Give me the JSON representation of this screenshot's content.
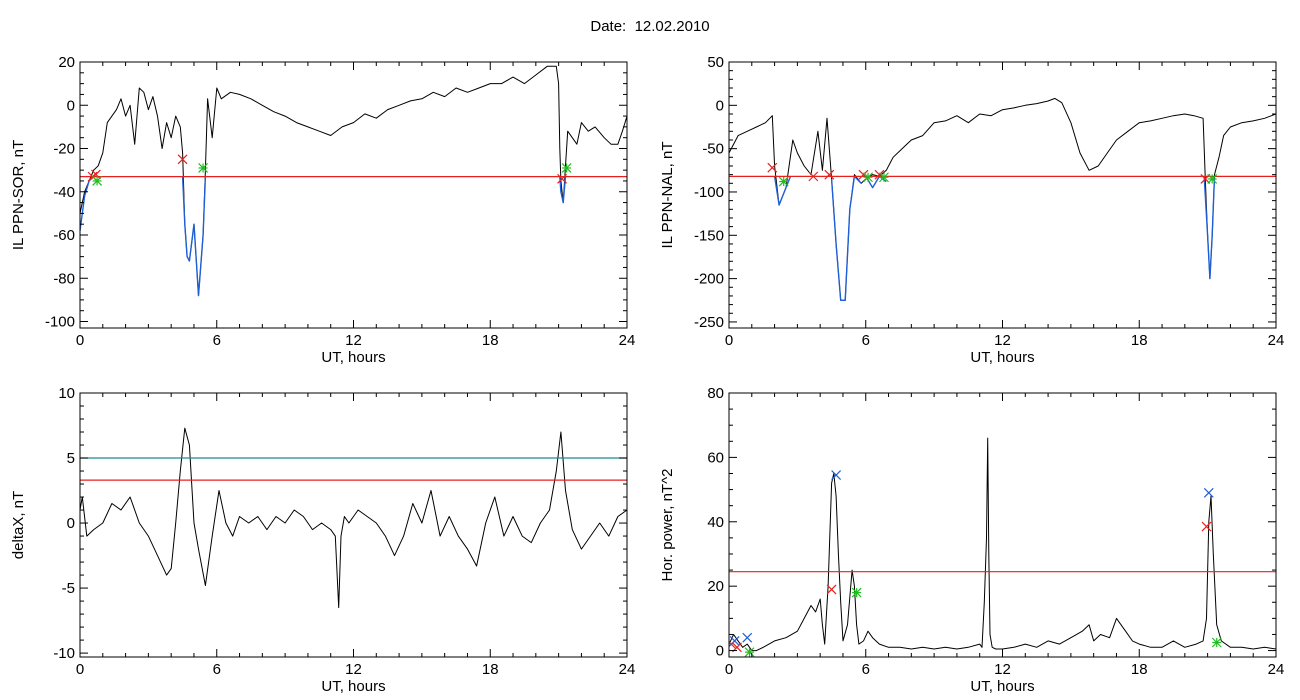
{
  "page": {
    "date_label": "Date:",
    "date_value": "12.02.2010"
  },
  "colors": {
    "trace": "#000000",
    "highlight": "#1f5fd6",
    "threshold": "#e8201c",
    "threshold2": "#1a8c8c",
    "marker_red": "#e8201c",
    "marker_green": "#22bb22",
    "marker_blue": "#1f5fd6"
  },
  "chart_data": [
    {
      "id": "sor",
      "type": "line",
      "xlabel": "UT, hours",
      "ylabel": "IL PPN-SOR, nT",
      "xlim": [
        0,
        24
      ],
      "ylim": [
        -103,
        20
      ],
      "xticks": [
        0,
        6,
        12,
        18,
        24
      ],
      "yticks": [
        20,
        0,
        -20,
        -40,
        -60,
        -80,
        -100
      ],
      "minor_x": 1,
      "minor_y": 5,
      "series": [
        {
          "color": "#000000",
          "x": [
            0,
            0.2,
            0.4,
            0.6,
            0.8,
            1.0,
            1.2,
            1.4,
            1.6,
            1.8,
            2.0,
            2.2,
            2.4,
            2.6,
            2.8,
            3.0,
            3.2,
            3.4,
            3.6,
            3.8,
            4.0,
            4.2,
            4.4,
            4.5,
            4.6,
            4.7,
            4.8,
            5.0,
            5.2,
            5.4,
            5.5,
            5.6,
            5.8,
            6.0,
            6.2,
            6.6,
            7.0,
            7.5,
            8.0,
            8.5,
            9.0,
            9.5,
            10.0,
            10.5,
            11.0,
            11.5,
            12.0,
            12.5,
            13.0,
            13.5,
            14.0,
            14.5,
            15.0,
            15.5,
            16.0,
            16.5,
            17.0,
            17.5,
            18.0,
            18.5,
            19.0,
            19.5,
            20.0,
            20.5,
            20.9,
            21.0,
            21.05,
            21.1,
            21.2,
            21.3,
            21.4,
            21.6,
            21.8,
            22.0,
            22.3,
            22.6,
            23.0,
            23.3,
            23.6,
            23.8,
            24.0
          ],
          "y": [
            -50,
            -40,
            -35,
            -30,
            -28,
            -22,
            -8,
            -5,
            -2,
            3,
            -5,
            0,
            -18,
            8,
            6,
            -2,
            4,
            -5,
            -20,
            -8,
            -15,
            -5,
            -10,
            -22,
            -55,
            -70,
            -72,
            -55,
            -88,
            -60,
            -30,
            3,
            -15,
            8,
            3,
            6,
            5,
            3,
            0,
            -3,
            -5,
            -8,
            -10,
            -12,
            -14,
            -10,
            -8,
            -4,
            -6,
            -2,
            0,
            2,
            3,
            6,
            4,
            8,
            6,
            8,
            10,
            10,
            13,
            10,
            14,
            18,
            18,
            10,
            -20,
            -35,
            -45,
            -28,
            -12,
            -15,
            -18,
            -8,
            -12,
            -10,
            -15,
            -18,
            -18,
            -12,
            -5
          ]
        },
        {
          "color": "#1f5fd6",
          "x": [
            0,
            0.2,
            0.4,
            0.6
          ],
          "y": [
            -58,
            -42,
            -35,
            -33
          ]
        },
        {
          "color": "#1f5fd6",
          "x": [
            4.5,
            4.6,
            4.7,
            4.8,
            5.0,
            5.2,
            5.4,
            5.5
          ],
          "y": [
            -33,
            -55,
            -70,
            -72,
            -55,
            -88,
            -60,
            -33
          ]
        },
        {
          "color": "#1f5fd6",
          "x": [
            21.05,
            21.1,
            21.2,
            21.3
          ],
          "y": [
            -33,
            -40,
            -45,
            -33
          ]
        }
      ],
      "hlines": [
        {
          "y": -33,
          "color": "#e8201c"
        }
      ],
      "markers": [
        {
          "x": 0.55,
          "y": -33,
          "type": "cross",
          "color": "#e8201c"
        },
        {
          "x": 0.7,
          "y": -32,
          "type": "cross",
          "color": "#e8201c"
        },
        {
          "x": 0.75,
          "y": -35,
          "type": "asterisk",
          "color": "#22bb22"
        },
        {
          "x": 4.5,
          "y": -25,
          "type": "cross",
          "color": "#e8201c"
        },
        {
          "x": 5.4,
          "y": -29,
          "type": "asterisk",
          "color": "#22bb22"
        },
        {
          "x": 21.15,
          "y": -34,
          "type": "cross",
          "color": "#e8201c"
        },
        {
          "x": 21.35,
          "y": -29,
          "type": "asterisk",
          "color": "#22bb22"
        }
      ]
    },
    {
      "id": "nal",
      "type": "line",
      "xlabel": "UT, hours",
      "ylabel": "IL PPN-NAL, nT",
      "xlim": [
        0,
        24
      ],
      "ylim": [
        -257,
        50
      ],
      "xticks": [
        0,
        6,
        12,
        18,
        24
      ],
      "yticks": [
        50,
        0,
        -50,
        -100,
        -150,
        -200,
        -250
      ],
      "minor_x": 1,
      "minor_y": 10,
      "series": [
        {
          "color": "#000000",
          "x": [
            0,
            0.4,
            0.8,
            1.2,
            1.6,
            1.9,
            2.0,
            2.2,
            2.5,
            2.8,
            3.0,
            3.3,
            3.6,
            3.9,
            4.1,
            4.3,
            4.5,
            4.7,
            4.9,
            5.1,
            5.3,
            5.5,
            5.8,
            6.0,
            6.3,
            6.6,
            6.9,
            7.2,
            7.6,
            8.0,
            8.5,
            9.0,
            9.5,
            10.0,
            10.5,
            11.0,
            11.5,
            12.0,
            12.5,
            13.0,
            13.5,
            14.0,
            14.3,
            14.6,
            15.0,
            15.4,
            15.8,
            16.2,
            16.6,
            17.0,
            17.5,
            18.0,
            18.5,
            19.0,
            19.5,
            20.0,
            20.4,
            20.8,
            20.9,
            21.0,
            21.1,
            21.2,
            21.3,
            21.5,
            21.7,
            22.0,
            22.5,
            23.0,
            23.5,
            24.0
          ],
          "y": [
            -55,
            -35,
            -30,
            -25,
            -20,
            -12,
            -70,
            -115,
            -95,
            -40,
            -55,
            -70,
            -80,
            -30,
            -75,
            -15,
            -85,
            -160,
            -225,
            -225,
            -120,
            -80,
            -90,
            -85,
            -80,
            -82,
            -75,
            -60,
            -50,
            -40,
            -35,
            -20,
            -18,
            -12,
            -20,
            -10,
            -12,
            -5,
            -3,
            0,
            2,
            5,
            8,
            3,
            -20,
            -55,
            -75,
            -70,
            -55,
            -40,
            -30,
            -20,
            -18,
            -15,
            -12,
            -10,
            -12,
            -15,
            -85,
            -150,
            -200,
            -150,
            -80,
            -60,
            -35,
            -25,
            -20,
            -18,
            -15,
            -10
          ]
        },
        {
          "color": "#1f5fd6",
          "x": [
            2.0,
            2.2,
            2.5,
            2.7
          ],
          "y": [
            -82,
            -115,
            -95,
            -82
          ]
        },
        {
          "color": "#1f5fd6",
          "x": [
            4.5,
            4.7,
            4.9,
            5.1,
            5.3,
            5.5,
            5.8
          ],
          "y": [
            -85,
            -160,
            -225,
            -225,
            -120,
            -82,
            -90
          ]
        },
        {
          "color": "#1f5fd6",
          "x": [
            6.0,
            6.3,
            6.6,
            6.9
          ],
          "y": [
            -82,
            -95,
            -82,
            -88
          ]
        },
        {
          "color": "#1f5fd6",
          "x": [
            20.85,
            21.0,
            21.1,
            21.2,
            21.3
          ],
          "y": [
            -82,
            -150,
            -200,
            -150,
            -82
          ]
        }
      ],
      "hlines": [
        {
          "y": -82,
          "color": "#e8201c"
        }
      ],
      "markers": [
        {
          "x": 1.9,
          "y": -72,
          "type": "cross",
          "color": "#e8201c"
        },
        {
          "x": 2.4,
          "y": -88,
          "type": "asterisk",
          "color": "#22bb22"
        },
        {
          "x": 3.7,
          "y": -82,
          "type": "cross",
          "color": "#e8201c"
        },
        {
          "x": 4.4,
          "y": -80,
          "type": "cross",
          "color": "#e8201c"
        },
        {
          "x": 5.9,
          "y": -80,
          "type": "cross",
          "color": "#e8201c"
        },
        {
          "x": 6.1,
          "y": -83,
          "type": "asterisk",
          "color": "#22bb22"
        },
        {
          "x": 6.6,
          "y": -80,
          "type": "cross",
          "color": "#e8201c"
        },
        {
          "x": 6.8,
          "y": -83,
          "type": "asterisk",
          "color": "#22bb22"
        },
        {
          "x": 20.9,
          "y": -85,
          "type": "cross",
          "color": "#e8201c"
        },
        {
          "x": 21.2,
          "y": -85,
          "type": "asterisk",
          "color": "#22bb22"
        }
      ]
    },
    {
      "id": "deltax",
      "type": "line",
      "xlabel": "UT, hours",
      "ylabel": "deltaX, nT",
      "xlim": [
        0,
        24
      ],
      "ylim": [
        -10.3,
        10
      ],
      "xticks": [
        0,
        6,
        12,
        18,
        24
      ],
      "yticks": [
        10,
        5,
        0,
        -5,
        -10
      ],
      "minor_x": 1,
      "minor_y": 1,
      "series": [
        {
          "color": "#000000",
          "x": [
            0,
            0.1,
            0.3,
            0.6,
            1.0,
            1.4,
            1.8,
            2.2,
            2.6,
            3.0,
            3.4,
            3.8,
            4.0,
            4.2,
            4.4,
            4.6,
            4.8,
            5.0,
            5.2,
            5.5,
            5.8,
            6.1,
            6.4,
            6.7,
            7.0,
            7.4,
            7.8,
            8.2,
            8.6,
            9.0,
            9.4,
            9.8,
            10.2,
            10.6,
            11.0,
            11.2,
            11.35,
            11.45,
            11.6,
            11.8,
            12.2,
            12.6,
            13.0,
            13.4,
            13.8,
            14.2,
            14.6,
            15.0,
            15.4,
            15.8,
            16.2,
            16.6,
            17.0,
            17.4,
            17.8,
            18.2,
            18.6,
            19.0,
            19.4,
            19.8,
            20.2,
            20.6,
            20.9,
            21.1,
            21.3,
            21.6,
            22.0,
            22.4,
            22.8,
            23.2,
            23.6,
            24.0
          ],
          "y": [
            1,
            2,
            -1,
            -0.5,
            0,
            1.5,
            1,
            2,
            0,
            -1,
            -2.5,
            -4,
            -3.5,
            0,
            4,
            7.3,
            6,
            0,
            -2,
            -4.8,
            -1,
            2.5,
            0,
            -1,
            0.5,
            0,
            0.5,
            -0.5,
            0.5,
            0,
            1,
            0.5,
            -0.5,
            0,
            -0.5,
            -1,
            -6.5,
            -1,
            0.5,
            0,
            1,
            0.5,
            0,
            -1,
            -2.5,
            -1,
            1.5,
            0,
            2.5,
            -1,
            0.5,
            -1,
            -2,
            -3.3,
            0,
            2,
            -1,
            0.5,
            -1,
            -1.5,
            0,
            1,
            4,
            7,
            2.5,
            -0.5,
            -2,
            -1,
            0,
            -1,
            0.5,
            1
          ]
        }
      ],
      "hlines": [
        {
          "y": 5,
          "color": "#1a8c8c"
        },
        {
          "y": 3.3,
          "color": "#e8201c"
        }
      ],
      "markers": []
    },
    {
      "id": "power",
      "type": "line",
      "xlabel": "UT, hours",
      "ylabel": "Hor. power, nT^2",
      "xlim": [
        0,
        24
      ],
      "ylim": [
        -2,
        80
      ],
      "xticks": [
        0,
        6,
        12,
        18,
        24
      ],
      "yticks": [
        80,
        60,
        40,
        20,
        0
      ],
      "minor_x": 1,
      "minor_y": 5,
      "series": [
        {
          "color": "#000000",
          "x": [
            0,
            0.2,
            0.4,
            0.6,
            0.8,
            1.0,
            1.2,
            1.5,
            2.0,
            2.5,
            3.0,
            3.3,
            3.6,
            3.8,
            4.0,
            4.1,
            4.2,
            4.35,
            4.5,
            4.6,
            4.7,
            4.8,
            4.9,
            5.0,
            5.2,
            5.4,
            5.5,
            5.6,
            5.7,
            5.9,
            6.1,
            6.3,
            6.6,
            7.0,
            7.5,
            8.0,
            8.5,
            9.0,
            9.5,
            10.0,
            10.5,
            11.0,
            11.1,
            11.2,
            11.3,
            11.35,
            11.4,
            11.45,
            11.55,
            11.7,
            12.0,
            12.5,
            13.0,
            13.5,
            14.0,
            14.5,
            15.0,
            15.5,
            15.8,
            16.0,
            16.3,
            16.7,
            17.0,
            17.4,
            17.7,
            18.0,
            18.5,
            19.0,
            19.5,
            20.0,
            20.5,
            20.8,
            20.95,
            21.05,
            21.15,
            21.25,
            21.4,
            21.6,
            22.0,
            22.5,
            23.0,
            23.5,
            24.0
          ],
          "y": [
            2,
            5,
            3,
            1,
            2,
            0,
            0,
            1,
            3,
            4,
            6,
            10,
            14,
            12,
            16,
            8,
            2,
            20,
            52,
            55,
            48,
            30,
            15,
            3,
            8,
            25,
            20,
            8,
            2,
            3,
            6,
            4,
            2,
            1,
            1,
            0.5,
            1,
            0.5,
            1,
            0.5,
            1,
            2,
            1,
            15,
            35,
            66,
            30,
            5,
            1,
            0.5,
            0.5,
            1,
            2,
            1,
            3,
            2,
            4,
            6,
            8,
            3,
            5,
            4,
            10,
            6,
            3,
            2,
            1,
            1,
            3,
            1,
            2,
            3,
            10,
            40,
            48,
            30,
            8,
            3,
            1,
            1,
            0.5,
            1,
            0.5
          ]
        }
      ],
      "hlines": [
        {
          "y": 24.5,
          "color": "#e8201c"
        }
      ],
      "markers": [
        {
          "x": 0.1,
          "y": 2,
          "type": "cross",
          "color": "#e8201c"
        },
        {
          "x": 0.25,
          "y": 3,
          "type": "cross",
          "color": "#1f5fd6"
        },
        {
          "x": 0.35,
          "y": 1,
          "type": "cross",
          "color": "#e8201c"
        },
        {
          "x": 0.8,
          "y": 4,
          "type": "cross",
          "color": "#1f5fd6"
        },
        {
          "x": 0.9,
          "y": -0.5,
          "type": "asterisk",
          "color": "#22bb22"
        },
        {
          "x": 4.5,
          "y": 19,
          "type": "cross",
          "color": "#e8201c"
        },
        {
          "x": 4.7,
          "y": 54.5,
          "type": "cross",
          "color": "#1f5fd6"
        },
        {
          "x": 5.6,
          "y": 18,
          "type": "asterisk",
          "color": "#22bb22"
        },
        {
          "x": 20.95,
          "y": 38.5,
          "type": "cross",
          "color": "#e8201c"
        },
        {
          "x": 21.05,
          "y": 49,
          "type": "cross",
          "color": "#1f5fd6"
        },
        {
          "x": 21.4,
          "y": 2.5,
          "type": "asterisk",
          "color": "#22bb22"
        }
      ]
    }
  ]
}
